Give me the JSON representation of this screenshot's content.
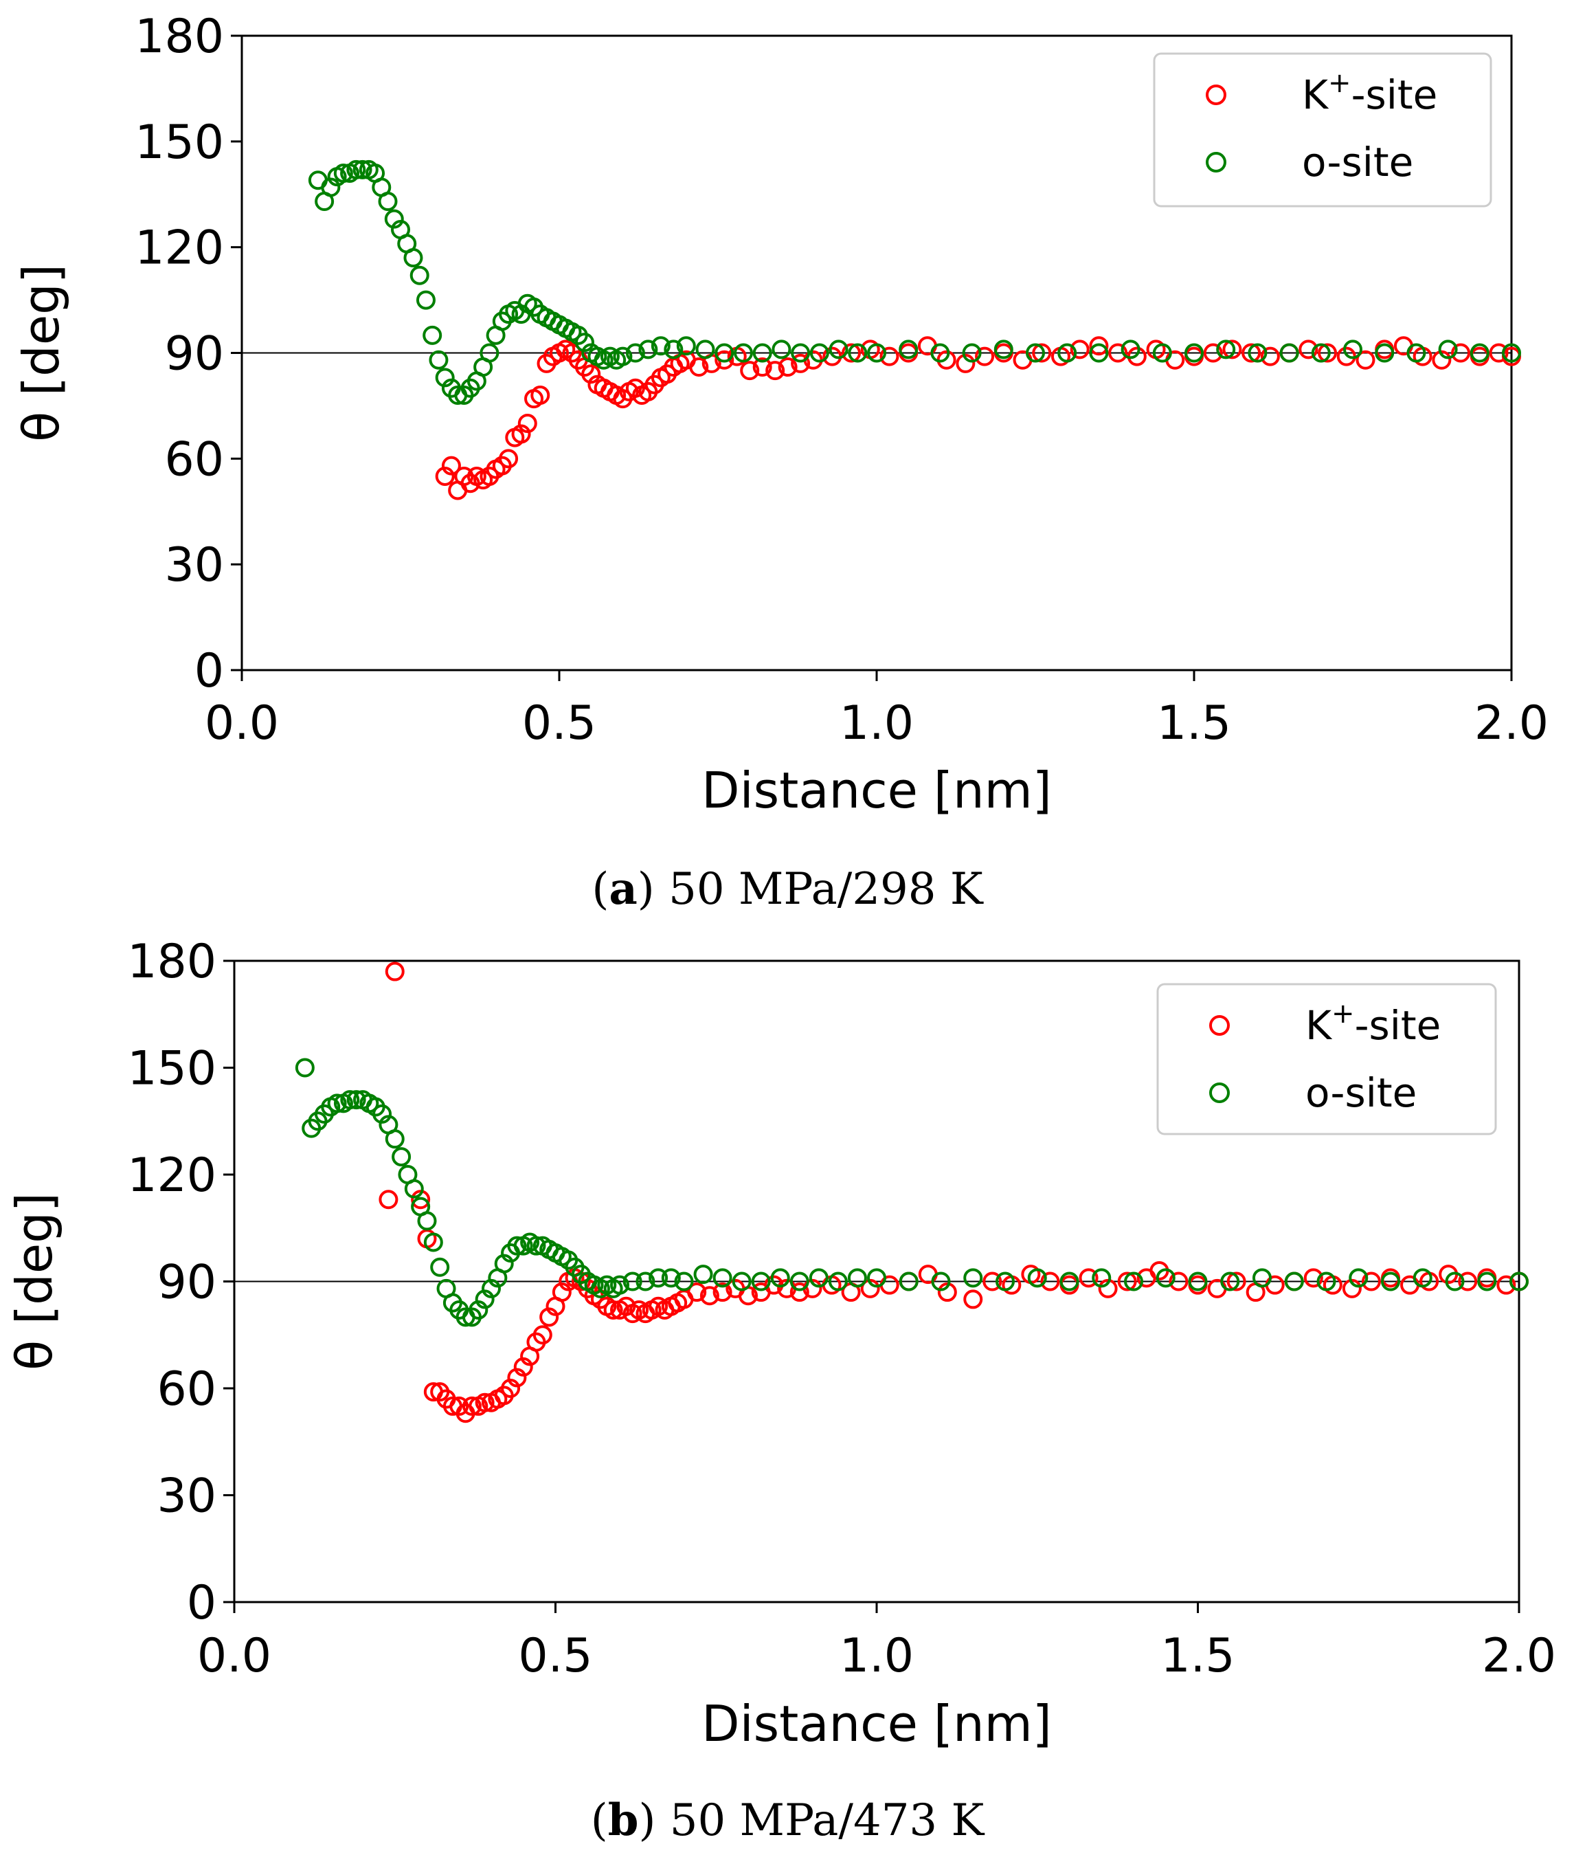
{
  "colors": {
    "k_site": "#ff0000",
    "o_site": "#008000",
    "axis": "#000000"
  },
  "chart_data": [
    {
      "type": "scatter",
      "caption": {
        "open": "(",
        "tag": "a",
        "close": ")",
        "text": " 50 MPa/298 K"
      },
      "xlabel": "Distance [nm]",
      "ylabel": "θ [deg]",
      "xlim": [
        0.0,
        2.0
      ],
      "ylim": [
        0,
        180
      ],
      "xticks": [
        "0.0",
        "0.5",
        "1.0",
        "1.5",
        "2.0"
      ],
      "yticks": [
        "0",
        "30",
        "60",
        "90",
        "120",
        "150",
        "180"
      ],
      "reference_line": 90,
      "legend": {
        "position": "top-right",
        "k_label": "K",
        "k_sup": "+",
        "k_suffix": "-site",
        "o_label": "o-site"
      },
      "series": [
        {
          "name": "K+-site",
          "color": "#ff0000",
          "x": [
            0.32,
            0.33,
            0.34,
            0.35,
            0.36,
            0.37,
            0.38,
            0.39,
            0.4,
            0.41,
            0.42,
            0.43,
            0.44,
            0.45,
            0.46,
            0.47,
            0.48,
            0.49,
            0.5,
            0.51,
            0.52,
            0.53,
            0.54,
            0.55,
            0.56,
            0.57,
            0.58,
            0.59,
            0.6,
            0.61,
            0.62,
            0.63,
            0.64,
            0.65,
            0.66,
            0.67,
            0.68,
            0.69,
            0.7,
            0.72,
            0.74,
            0.76,
            0.78,
            0.8,
            0.82,
            0.84,
            0.86,
            0.88,
            0.9,
            0.93,
            0.96,
            0.99,
            1.02,
            1.05,
            1.08,
            1.11,
            1.14,
            1.17,
            1.2,
            1.23,
            1.26,
            1.29,
            1.32,
            1.35,
            1.38,
            1.41,
            1.44,
            1.47,
            1.5,
            1.53,
            1.56,
            1.59,
            1.62,
            1.65,
            1.68,
            1.71,
            1.74,
            1.77,
            1.8,
            1.83,
            1.86,
            1.89,
            1.92,
            1.95,
            1.98,
            2.0
          ],
          "y": [
            55,
            58,
            51,
            55,
            53,
            55,
            54,
            55,
            57,
            58,
            60,
            66,
            67,
            70,
            77,
            78,
            87,
            89,
            90,
            91,
            90,
            88,
            86,
            84,
            81,
            80,
            79,
            78,
            77,
            79,
            80,
            78,
            79,
            81,
            83,
            84,
            86,
            87,
            88,
            86,
            87,
            88,
            89,
            85,
            86,
            85,
            86,
            87,
            88,
            89,
            90,
            91,
            89,
            90,
            92,
            88,
            87,
            89,
            90,
            88,
            90,
            89,
            91,
            92,
            90,
            89,
            91,
            88,
            89,
            90,
            91,
            90,
            89,
            90,
            91,
            90,
            89,
            88,
            91,
            92,
            89,
            88,
            90,
            89,
            90,
            89
          ]
        },
        {
          "name": "o-site",
          "color": "#008000",
          "x": [
            0.12,
            0.13,
            0.14,
            0.15,
            0.16,
            0.17,
            0.18,
            0.19,
            0.2,
            0.21,
            0.22,
            0.23,
            0.24,
            0.25,
            0.26,
            0.27,
            0.28,
            0.29,
            0.3,
            0.31,
            0.32,
            0.33,
            0.34,
            0.35,
            0.36,
            0.37,
            0.38,
            0.39,
            0.4,
            0.41,
            0.42,
            0.43,
            0.44,
            0.45,
            0.46,
            0.47,
            0.48,
            0.49,
            0.5,
            0.51,
            0.52,
            0.53,
            0.54,
            0.55,
            0.56,
            0.57,
            0.58,
            0.59,
            0.6,
            0.62,
            0.64,
            0.66,
            0.68,
            0.7,
            0.73,
            0.76,
            0.79,
            0.82,
            0.85,
            0.88,
            0.91,
            0.94,
            0.97,
            1.0,
            1.05,
            1.1,
            1.15,
            1.2,
            1.25,
            1.3,
            1.35,
            1.4,
            1.45,
            1.5,
            1.55,
            1.6,
            1.65,
            1.7,
            1.75,
            1.8,
            1.85,
            1.9,
            1.95,
            2.0
          ],
          "y": [
            139,
            133,
            137,
            140,
            141,
            141,
            142,
            142,
            142,
            141,
            137,
            133,
            128,
            125,
            121,
            117,
            112,
            105,
            95,
            88,
            83,
            80,
            78,
            78,
            80,
            82,
            86,
            90,
            95,
            99,
            101,
            102,
            101,
            104,
            103,
            101,
            100,
            99,
            98,
            97,
            96,
            95,
            93,
            90,
            89,
            88,
            89,
            88,
            89,
            90,
            91,
            92,
            91,
            92,
            91,
            90,
            90,
            90,
            91,
            90,
            90,
            91,
            90,
            90,
            91,
            90,
            90,
            91,
            90,
            90,
            90,
            91,
            90,
            90,
            91,
            90,
            90,
            90,
            91,
            90,
            90,
            91,
            90,
            90
          ]
        }
      ]
    },
    {
      "type": "scatter",
      "caption": {
        "open": "(",
        "tag": "b",
        "close": ")",
        "text": " 50 MPa/473 K"
      },
      "xlabel": "Distance [nm]",
      "ylabel": "θ [deg]",
      "xlim": [
        0.0,
        2.0
      ],
      "ylim": [
        0,
        180
      ],
      "xticks": [
        "0.0",
        "0.5",
        "1.0",
        "1.5",
        "2.0"
      ],
      "yticks": [
        "0",
        "30",
        "60",
        "90",
        "120",
        "150",
        "180"
      ],
      "reference_line": 90,
      "legend": {
        "position": "top-right",
        "k_label": "K",
        "k_sup": "+",
        "k_suffix": "-site",
        "o_label": "o-site"
      },
      "series": [
        {
          "name": "K+-site",
          "color": "#ff0000",
          "x": [
            0.24,
            0.25,
            0.29,
            0.3,
            0.31,
            0.32,
            0.33,
            0.34,
            0.35,
            0.36,
            0.37,
            0.38,
            0.39,
            0.4,
            0.41,
            0.42,
            0.43,
            0.44,
            0.45,
            0.46,
            0.47,
            0.48,
            0.49,
            0.5,
            0.51,
            0.52,
            0.53,
            0.54,
            0.55,
            0.56,
            0.57,
            0.58,
            0.59,
            0.6,
            0.61,
            0.62,
            0.63,
            0.64,
            0.65,
            0.66,
            0.67,
            0.68,
            0.69,
            0.7,
            0.72,
            0.74,
            0.76,
            0.78,
            0.8,
            0.82,
            0.84,
            0.86,
            0.88,
            0.9,
            0.93,
            0.96,
            0.99,
            1.02,
            1.05,
            1.08,
            1.11,
            1.15,
            1.18,
            1.21,
            1.24,
            1.27,
            1.3,
            1.33,
            1.36,
            1.39,
            1.42,
            1.44,
            1.47,
            1.5,
            1.53,
            1.56,
            1.59,
            1.62,
            1.65,
            1.68,
            1.71,
            1.74,
            1.77,
            1.8,
            1.83,
            1.86,
            1.89,
            1.92,
            1.95,
            1.98,
            2.0
          ],
          "y": [
            113,
            177,
            113,
            102,
            59,
            59,
            57,
            55,
            55,
            53,
            55,
            55,
            56,
            56,
            57,
            58,
            60,
            63,
            66,
            69,
            73,
            75,
            80,
            83,
            87,
            90,
            91,
            90,
            88,
            86,
            85,
            83,
            82,
            82,
            83,
            81,
            82,
            81,
            82,
            83,
            82,
            83,
            84,
            85,
            87,
            86,
            87,
            88,
            86,
            87,
            89,
            88,
            87,
            88,
            89,
            87,
            88,
            89,
            90,
            92,
            87,
            85,
            90,
            89,
            92,
            90,
            89,
            91,
            88,
            90,
            91,
            93,
            90,
            89,
            88,
            90,
            87,
            89,
            90,
            91,
            89,
            88,
            90,
            91,
            89,
            90,
            92,
            90,
            91,
            89,
            90
          ]
        },
        {
          "name": "o-site",
          "color": "#008000",
          "x": [
            0.11,
            0.12,
            0.13,
            0.14,
            0.15,
            0.16,
            0.17,
            0.18,
            0.19,
            0.2,
            0.21,
            0.22,
            0.23,
            0.24,
            0.25,
            0.26,
            0.27,
            0.28,
            0.29,
            0.3,
            0.31,
            0.32,
            0.33,
            0.34,
            0.35,
            0.36,
            0.37,
            0.38,
            0.39,
            0.4,
            0.41,
            0.42,
            0.43,
            0.44,
            0.45,
            0.46,
            0.47,
            0.48,
            0.49,
            0.5,
            0.51,
            0.52,
            0.53,
            0.54,
            0.55,
            0.56,
            0.57,
            0.58,
            0.59,
            0.6,
            0.62,
            0.64,
            0.66,
            0.68,
            0.7,
            0.73,
            0.76,
            0.79,
            0.82,
            0.85,
            0.88,
            0.91,
            0.94,
            0.97,
            1.0,
            1.05,
            1.1,
            1.15,
            1.2,
            1.25,
            1.3,
            1.35,
            1.4,
            1.45,
            1.5,
            1.55,
            1.6,
            1.65,
            1.7,
            1.75,
            1.8,
            1.85,
            1.9,
            1.95,
            2.0
          ],
          "y": [
            150,
            133,
            135,
            137,
            139,
            140,
            140,
            141,
            141,
            141,
            140,
            139,
            137,
            134,
            130,
            125,
            120,
            116,
            111,
            107,
            101,
            94,
            88,
            84,
            82,
            80,
            80,
            82,
            85,
            88,
            91,
            95,
            98,
            100,
            100,
            101,
            100,
            100,
            99,
            98,
            97,
            96,
            94,
            92,
            90,
            89,
            88,
            89,
            88,
            89,
            90,
            90,
            91,
            91,
            90,
            92,
            91,
            90,
            90,
            91,
            90,
            91,
            90,
            91,
            91,
            90,
            90,
            91,
            90,
            91,
            90,
            91,
            90,
            91,
            90,
            90,
            91,
            90,
            90,
            91,
            90,
            91,
            90,
            90,
            90
          ]
        }
      ]
    }
  ]
}
